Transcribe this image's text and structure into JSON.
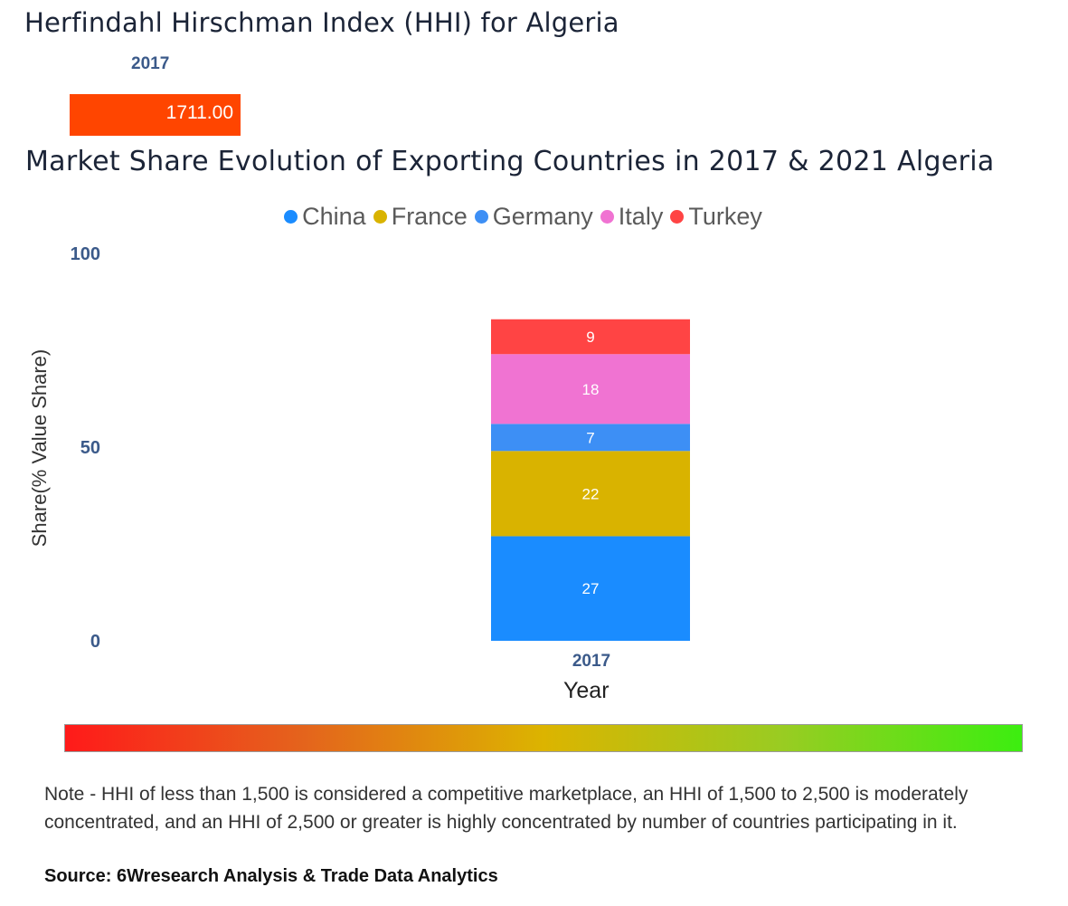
{
  "hhi": {
    "title": "Herfindahl Hirschman Index (HHI) for Algeria",
    "year": "2017",
    "value_label": "1711.00",
    "value": 1711.0,
    "bar_color": "#ff4500"
  },
  "market_share": {
    "title": "Market Share Evolution of Exporting Countries in 2017 & 2021 Algeria"
  },
  "legend": [
    {
      "name": "China",
      "color": "#1a8cff"
    },
    {
      "name": "France",
      "color": "#d9b300"
    },
    {
      "name": "Germany",
      "color": "#3d8ff5"
    },
    {
      "name": "Italy",
      "color": "#f073d2"
    },
    {
      "name": "Turkey",
      "color": "#ff4444"
    }
  ],
  "chart_data": {
    "type": "bar",
    "stacked": true,
    "title": "Market Share Evolution of Exporting Countries in 2017 & 2021 Algeria",
    "categories": [
      "2017"
    ],
    "series": [
      {
        "name": "China",
        "values": [
          27
        ],
        "color": "#1a8cff"
      },
      {
        "name": "France",
        "values": [
          22
        ],
        "color": "#d9b300"
      },
      {
        "name": "Germany",
        "values": [
          7
        ],
        "color": "#3d8ff5"
      },
      {
        "name": "Italy",
        "values": [
          18
        ],
        "color": "#f073d2"
      },
      {
        "name": "Turkey",
        "values": [
          9
        ],
        "color": "#ff4444"
      }
    ],
    "xlabel": "Year",
    "ylabel": "Share(% Value Share)",
    "ylim": [
      0,
      100
    ],
    "yticks": [
      "0",
      "50",
      "100"
    ],
    "grid": false,
    "legend_position": "top"
  },
  "note": "Note - HHI of less than 1,500 is considered a competitive marketplace, an HHI of 1,500 to 2,500 is moderately concentrated, and an HHI of 2,500 or greater is highly concentrated by number of countries participating in it.",
  "source": "Source: 6Wresearch Analysis & Trade Data Analytics",
  "gradient_colors": {
    "start": "#ff1a1a",
    "mid": "#dcb400",
    "end": "#3cee10"
  }
}
